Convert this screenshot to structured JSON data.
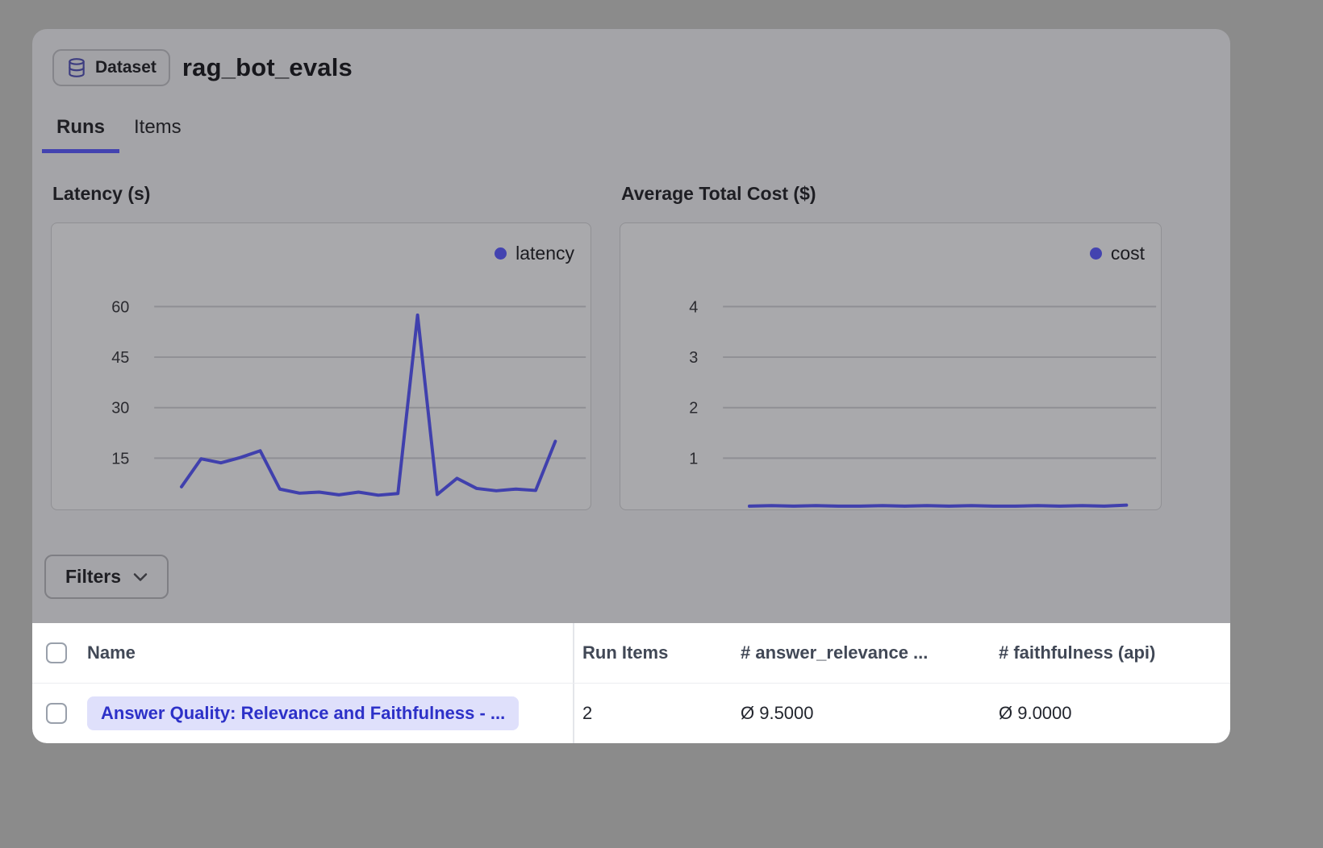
{
  "header": {
    "badge_label": "Dataset",
    "title": "rag_bot_evals"
  },
  "tabs": [
    {
      "label": "Runs",
      "active": true
    },
    {
      "label": "Items",
      "active": false
    }
  ],
  "filters": {
    "label": "Filters"
  },
  "colors": {
    "accent": "#4343b0",
    "grid": "#8f8f94",
    "link": "#2d31c8",
    "link_bg": "#dfe0fb"
  },
  "chart_data": [
    {
      "type": "line",
      "title": "Latency (s)",
      "series": [
        {
          "name": "latency",
          "values": [
            6.5,
            14.8,
            13.6,
            15.2,
            17.2,
            5.8,
            4.6,
            4.9,
            4.1,
            4.9,
            4.0,
            4.5,
            57.5,
            4.2,
            9.0,
            6.0,
            5.3,
            5.8,
            5.4,
            20.0
          ]
        }
      ],
      "yticks": [
        60,
        45,
        30,
        15
      ],
      "ylim": [
        0,
        65
      ],
      "xlabel": "",
      "ylabel": "",
      "grid": true,
      "legend_position": "top-right",
      "color": "#4040ad"
    },
    {
      "type": "line",
      "title": "Average Total Cost ($)",
      "series": [
        {
          "name": "cost",
          "values": [
            0.05,
            0.06,
            0.05,
            0.06,
            0.05,
            0.05,
            0.06,
            0.05,
            0.06,
            0.05,
            0.06,
            0.05,
            0.05,
            0.06,
            0.05,
            0.06,
            0.05,
            0.07
          ]
        }
      ],
      "yticks": [
        4,
        3,
        2,
        1
      ],
      "ylim": [
        0,
        4.3
      ],
      "xlabel": "",
      "ylabel": "",
      "grid": true,
      "legend_position": "top-right",
      "color": "#4040ad"
    }
  ],
  "table": {
    "columns": [
      "Name",
      "Run Items",
      "# answer_relevance ...",
      "# faithfulness (api)"
    ],
    "rows": [
      {
        "name": "Answer Quality: Relevance and Faithfulness - ...",
        "run_items": "2",
        "answer_relevance": "Ø 9.5000",
        "faithfulness": "Ø 9.0000"
      }
    ]
  }
}
